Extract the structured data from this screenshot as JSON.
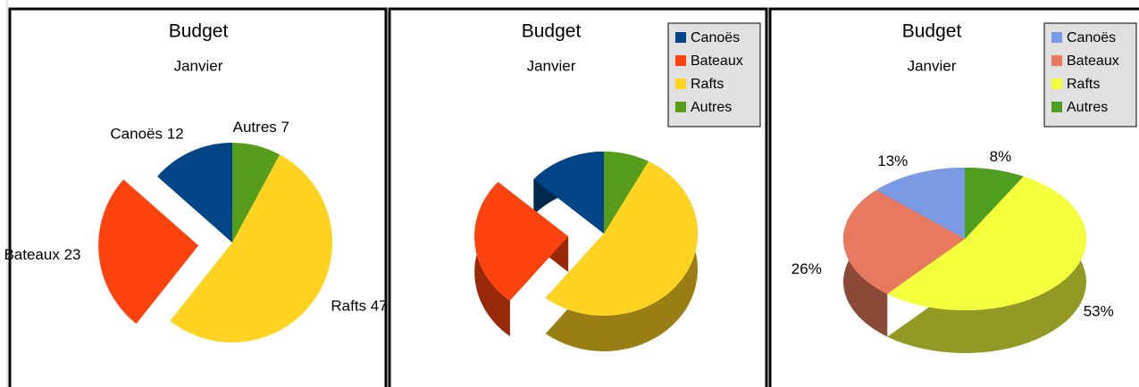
{
  "chart_data": [
    {
      "type": "pie",
      "title": "Budget",
      "subtitle": "Janvier",
      "categories": [
        "Canoës",
        "Bateaux",
        "Rafts",
        "Autres"
      ],
      "values": [
        12,
        23,
        47,
        7
      ],
      "colors": [
        "#004586",
        "#ff420e",
        "#ffd320",
        "#579d1c"
      ],
      "exploded": "Bateaux",
      "data_labels": true,
      "legend": "none",
      "view": "2d"
    },
    {
      "type": "pie",
      "title": "Budget",
      "subtitle": "Janvier",
      "categories": [
        "Canoës",
        "Bateaux",
        "Rafts",
        "Autres"
      ],
      "values": [
        12,
        23,
        47,
        7
      ],
      "colors": [
        "#004586",
        "#ff420e",
        "#ffd320",
        "#579d1c"
      ],
      "exploded": "Bateaux",
      "data_labels": false,
      "legend": "top-right",
      "view": "3d"
    },
    {
      "type": "pie",
      "title": "Budget",
      "subtitle": "Janvier",
      "categories": [
        "Canoës",
        "Bateaux",
        "Rafts",
        "Autres"
      ],
      "values": [
        13,
        26,
        53,
        8
      ],
      "value_labels": [
        "13%",
        "26%",
        "53%",
        "8%"
      ],
      "colors": [
        "#7b9ae6",
        "#e8795e",
        "#f4ff3c",
        "#4e9e22"
      ],
      "data_labels": true,
      "legend": "top-right",
      "view": "3d"
    }
  ]
}
